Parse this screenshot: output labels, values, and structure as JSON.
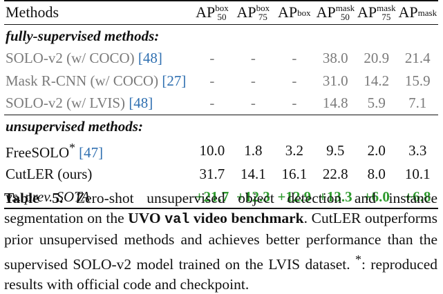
{
  "table": {
    "col_method": "Methods",
    "columns": [
      {
        "base": "AP",
        "sup": "box",
        "sub": "50"
      },
      {
        "base": "AP",
        "sup": "box",
        "sub": "75"
      },
      {
        "base": "AP",
        "sup": "box",
        "sub": ""
      },
      {
        "base": "AP",
        "sup": "mask",
        "sub": "50"
      },
      {
        "base": "AP",
        "sup": "mask",
        "sub": "75"
      },
      {
        "base": "AP",
        "sup": "mask",
        "sub": ""
      }
    ],
    "sections": [
      {
        "title": "fully-supervised methods:",
        "rows": [
          {
            "name": "SOLO-v2 (w/ COCO) ",
            "cite": "[48]",
            "values": [
              "-",
              "-",
              "-",
              "38.0",
              "20.9",
              "21.4"
            ]
          },
          {
            "name": "Mask R-CNN (w/ COCO) ",
            "cite": "[27]",
            "values": [
              "-",
              "-",
              "-",
              "31.0",
              "14.2",
              "15.9"
            ]
          },
          {
            "name": "SOLO-v2 (w/ LVIS) ",
            "cite": "[48]",
            "values": [
              "-",
              "-",
              "-",
              "14.8",
              "5.9",
              "7.1"
            ]
          }
        ]
      },
      {
        "title": "unsupervised methods:",
        "rows": [
          {
            "name": "FreeSOLO",
            "mark": "*",
            "cite": "[47]",
            "values": [
              "10.0",
              "1.8",
              "3.2",
              "9.5",
              "2.0",
              "3.3"
            ]
          },
          {
            "name": "CutLER (ours)",
            "values": [
              "31.7",
              "14.1",
              "16.1",
              "22.8",
              "8.0",
              "10.1"
            ]
          }
        ]
      }
    ],
    "gain_row": {
      "label": "vs. prev. SOTA",
      "values": [
        "+21.7",
        "+12.3",
        "+12.9",
        "+13.3",
        "+6.0",
        "+6.8"
      ]
    }
  },
  "caption": {
    "label": "Table 5.",
    "text1": " Zero-shot unsupervised object detection and instance segmentation on the ",
    "bold1": "UVO ",
    "mono": "val",
    "bold2": " video benchmark",
    "text2": ". CutLER outperforms prior unsupervised methods and achieves better performance than the supervised SOLO-v2 model trained on the LVIS dataset. ",
    "star": "*",
    "text3": ": reproduced results with official code and checkpoint."
  },
  "colors": {
    "citation": "#2f6fb0",
    "gain": "#2e9a2e",
    "supervised_text": "#7a7a7a"
  }
}
